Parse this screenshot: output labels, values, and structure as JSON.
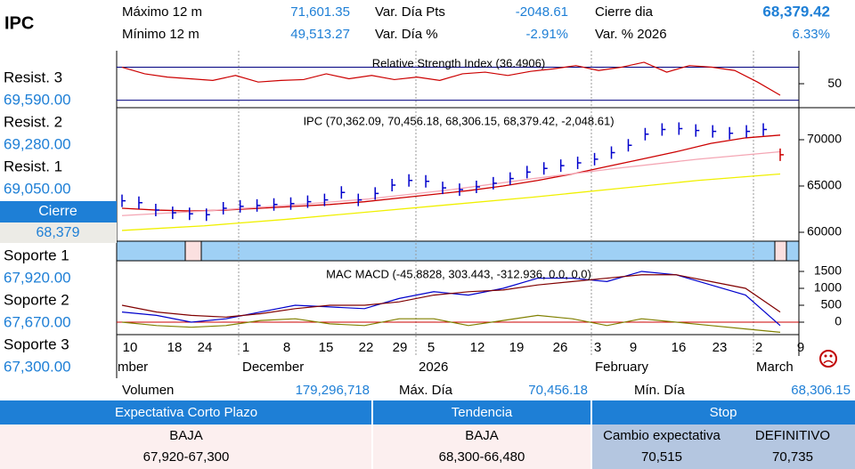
{
  "header": {
    "title": "IPC",
    "stats": [
      {
        "label": "Máximo 12 m",
        "value": "71,601.35"
      },
      {
        "label": "Var. Día Pts",
        "value": "-2048.61"
      },
      {
        "label": "Cierre dia",
        "value": "68,379.42"
      },
      {
        "label": "Mínimo 12 m",
        "value": "49,513.27"
      },
      {
        "label": "Var. Día %",
        "value": "-2.91%"
      },
      {
        "label": "Var. % 2026",
        "value": "6.33%"
      }
    ]
  },
  "levels": [
    {
      "label": "Resist. 3",
      "value": "69,590.00"
    },
    {
      "label": "Resist. 2",
      "value": "69,280.00"
    },
    {
      "label": "Resist. 1",
      "value": "69,050.00"
    },
    {
      "label": "Cierre",
      "value": "68,379"
    },
    {
      "label": "Soporte 1",
      "value": "67,920.00"
    },
    {
      "label": "Soporte 2",
      "value": "67,670.00"
    },
    {
      "label": "Soporte 3",
      "value": "67,300.00"
    }
  ],
  "charts": [
    {
      "type": "line",
      "title": "Relative Strength Index (36.4906)",
      "values": [
        70,
        62,
        58,
        56,
        54,
        60,
        52,
        54,
        55,
        62,
        56,
        60,
        55,
        58,
        54,
        62,
        64,
        60,
        65,
        68,
        72,
        66,
        70,
        76,
        64,
        72,
        70,
        66,
        52,
        36
      ],
      "color": "#cc0000",
      "levels": [
        70,
        30
      ],
      "level_color": "#000080",
      "ylim": [
        22,
        90
      ],
      "yticks": [
        50
      ]
    },
    {
      "type": "ohlc",
      "title": "IPC (70,362.09, 70,456.18, 68,306.15, 68,379.42, -2,048.61)",
      "closes": [
        63400,
        63200,
        62400,
        62100,
        62000,
        61900,
        62600,
        62800,
        62900,
        63000,
        63100,
        63300,
        63500,
        64300,
        63500,
        64200,
        65100,
        65600,
        65500,
        64800,
        64600,
        64900,
        65300,
        65800,
        66500,
        66900,
        67200,
        67500,
        67900,
        68600,
        69400,
        70600,
        71100,
        71200,
        71000,
        70900,
        70700,
        70900,
        71100,
        68379.42
      ],
      "color": "#0000cc",
      "down_color": "#cc0000",
      "series": [
        {
          "color": "#cc0000",
          "values": [
            62600,
            62400,
            62300,
            62400,
            62600,
            62800,
            63000,
            63300,
            63700,
            64100,
            64500,
            65000,
            65600,
            66300,
            67100,
            67900,
            68700,
            69600,
            70200,
            70500
          ]
        },
        {
          "color": "#f4a6b4",
          "values": [
            61800,
            62300,
            62900,
            63600,
            64600,
            65800,
            66900,
            67900,
            68700
          ]
        },
        {
          "color": "#f0f000",
          "values": [
            60200,
            60700,
            61400,
            62200,
            63000,
            63800,
            64700,
            65600,
            66300
          ]
        }
      ],
      "ylim": [
        59135,
        73365
      ],
      "yticks": [
        60000,
        65000,
        70000
      ]
    },
    {
      "type": "macd",
      "title": "MAC MACD (-45.8828, 303.443, -312.936, 0.0, 0.0)",
      "series": [
        {
          "color": "#0000cc",
          "values": [
            300,
            200,
            0,
            100,
            300,
            500,
            450,
            400,
            700,
            900,
            800,
            1000,
            1300,
            1300,
            1200,
            1500,
            1400,
            1100,
            800,
            -100
          ]
        },
        {
          "color": "#800000",
          "values": [
            500,
            300,
            200,
            150,
            250,
            400,
            500,
            500,
            600,
            800,
            900,
            950,
            1100,
            1200,
            1300,
            1400,
            1400,
            1200,
            1000,
            300
          ]
        },
        {
          "color": "#808000",
          "values": [
            0,
            -100,
            -150,
            -100,
            50,
            100,
            -50,
            -100,
            100,
            100,
            -100,
            50,
            200,
            100,
            -100,
            100,
            0,
            -100,
            -200,
            -300
          ]
        }
      ],
      "zero_color": "#cc0000",
      "ylim": [
        -342,
        1789
      ],
      "yticks": [
        0,
        500,
        1000,
        1500
      ]
    }
  ],
  "date_axis": {
    "days": [
      "10",
      "18",
      "24",
      "1",
      "8",
      "15",
      "22",
      "29",
      "5",
      "12",
      "19",
      "26",
      "3",
      "9",
      "16",
      "23",
      "2",
      "9"
    ],
    "months": [
      "mber",
      "December",
      "2026",
      "February",
      "March"
    ]
  },
  "footer": [
    {
      "label": "Volumen",
      "value": "179,296,718"
    },
    {
      "label": "Máx. Día",
      "value": "70,456.18"
    },
    {
      "label": "Mín. Día",
      "value": "68,306.15"
    }
  ],
  "table": {
    "headers": [
      "Expectativa Corto Plazo",
      "Tendencia",
      "Stop"
    ],
    "rows": [
      [
        "BAJA",
        "BAJA",
        "Cambio expectativa",
        "DEFINITIVO"
      ],
      [
        "67,920-67,300",
        "68,300-66,480",
        "70,515",
        "70,735"
      ]
    ]
  }
}
